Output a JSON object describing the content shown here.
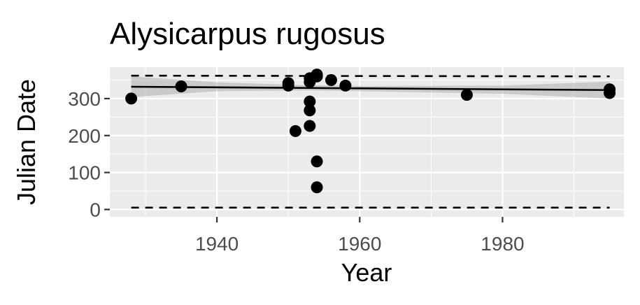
{
  "chart_data": {
    "type": "scatter",
    "title": "Alysicarpus rugosus",
    "xlabel": "Year",
    "ylabel": "Julian Date",
    "xlim": [
      1925,
      1997
    ],
    "ylim": [
      -20,
      385
    ],
    "x_ticks": [
      1940,
      1960,
      1980
    ],
    "y_ticks": [
      0,
      100,
      200,
      300
    ],
    "x_tick_labels": [
      "1940",
      "1960",
      "1980"
    ],
    "y_tick_labels": [
      "0",
      "100",
      "200",
      "300"
    ],
    "grid": true,
    "panel_background": "#ebebeb",
    "grid_color": "#ffffff",
    "point_color": "#000000",
    "series": [
      {
        "x": [
          1928,
          1935,
          1950,
          1950,
          1951,
          1953,
          1953,
          1953,
          1953,
          1953,
          1954,
          1954,
          1954,
          1954,
          1956,
          1958,
          1975,
          1995,
          1995
        ],
        "y": [
          300,
          333,
          335,
          342,
          212,
          226,
          268,
          292,
          345,
          355,
          360,
          365,
          130,
          60,
          350,
          335,
          310,
          325,
          315
        ]
      }
    ],
    "trend_line": {
      "x": [
        1928,
        1995
      ],
      "y": [
        332,
        323
      ]
    },
    "confidence_band": {
      "x": [
        1928,
        1940,
        1953,
        1960,
        1980,
        1995
      ],
      "lower": [
        304,
        320,
        322,
        320,
        313,
        300
      ],
      "upper": [
        360,
        344,
        336,
        334,
        335,
        346
      ]
    },
    "reference_lines": [
      {
        "style": "dashed",
        "x": [
          1928,
          1995
        ],
        "y": [
          362,
          360
        ]
      },
      {
        "style": "dashed",
        "x": [
          1928,
          1995
        ],
        "y": [
          5,
          5
        ]
      }
    ]
  }
}
